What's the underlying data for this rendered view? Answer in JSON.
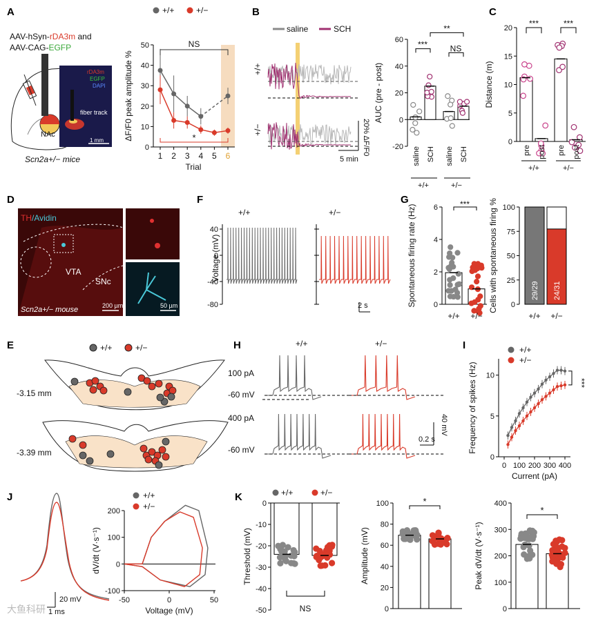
{
  "colors": {
    "wt": "#666666",
    "het": "#d93a2a",
    "saline": "#8a8a8a",
    "sch": "#a03070",
    "trial6": "#f6dcbf"
  },
  "panel_letters": [
    "A",
    "B",
    "C",
    "D",
    "E",
    "F",
    "G",
    "H",
    "I",
    "J",
    "K"
  ],
  "panel_a": {
    "virus_line1_pre": "AAV-hSyn-",
    "virus_line1_colored": "rDA3m",
    "virus_line1_post": " and",
    "virus_line2_pre": "AAV-CAG-",
    "virus_line2_colored": "EGFP",
    "region": "NAc",
    "mice": "Scn2a+/− mice",
    "micro_legend": [
      "rDA3m",
      "EGFP",
      "DAPI"
    ],
    "micro_label": "fiber track",
    "scale": "1 mm"
  },
  "legend": {
    "wt": "+/+",
    "het": "+/−"
  },
  "chart_data": [
    {
      "id": "A",
      "type": "line",
      "title": "",
      "xlabel": "Trial",
      "ylabel": "ΔF/F0 peak amplitude %",
      "x": [
        1,
        2,
        3,
        4,
        5,
        6
      ],
      "ylim": [
        0,
        50
      ],
      "yticks": [
        0,
        10,
        20,
        30,
        40,
        50
      ],
      "series": [
        {
          "name": "+/+",
          "values": [
            37.5,
            26,
            20,
            15,
            null,
            25
          ],
          "err": [
            10.5,
            9,
            5,
            4,
            null,
            4
          ]
        },
        {
          "name": "+/−",
          "values": [
            28,
            13,
            12,
            8.5,
            7,
            8
          ],
          "err": [
            7,
            4,
            3,
            2,
            1.5,
            1.5
          ]
        }
      ],
      "annotations": [
        "NS",
        "*"
      ]
    },
    {
      "id": "B",
      "type": "bar",
      "ylabel": "AUC (pre - post)",
      "categories": [
        "saline +/+",
        "SCH +/+",
        "saline +/−",
        "SCH +/−"
      ],
      "values": [
        2,
        25,
        6,
        10
      ],
      "ylim": [
        -20,
        60
      ],
      "yticks": [
        -20,
        0,
        20,
        40,
        60
      ],
      "annotations": [
        "***",
        "NS",
        "**"
      ]
    },
    {
      "id": "C",
      "type": "bar",
      "ylabel": "Distance (m)",
      "categories": [
        "pre +/+",
        "post +/+",
        "pre +/−",
        "post +/−"
      ],
      "values": [
        11.2,
        0.5,
        14.5,
        0.3
      ],
      "ylim": [
        0,
        20
      ],
      "yticks": [
        0,
        5,
        10,
        15,
        20
      ],
      "annotations": [
        "***",
        "***"
      ]
    },
    {
      "id": "G1",
      "type": "bar",
      "ylabel": "Spontaneous firing rate (Hz)",
      "categories": [
        "+/+",
        "+/−"
      ],
      "values": [
        1.95,
        0.95
      ],
      "ylim": [
        0,
        6
      ],
      "yticks": [
        0,
        2,
        4,
        6
      ],
      "annotations": [
        "***"
      ]
    },
    {
      "id": "G2",
      "type": "bar",
      "ylabel": "Cells with spontaneous firing %",
      "categories": [
        "+/+",
        "+/−"
      ],
      "values": [
        100,
        77.4
      ],
      "ylim": [
        0,
        100
      ],
      "yticks": [
        0,
        25,
        50,
        75,
        100
      ],
      "bar_labels": [
        "29/29",
        "24/31"
      ]
    },
    {
      "id": "I",
      "type": "line",
      "xlabel": "Current (pA)",
      "ylabel": "Frequency of spikes (Hz)",
      "x": [
        25,
        50,
        75,
        100,
        125,
        150,
        175,
        200,
        225,
        250,
        275,
        300,
        325,
        350,
        375,
        400
      ],
      "xticks": [
        0,
        100,
        200,
        300,
        400
      ],
      "ylim": [
        0,
        12
      ],
      "yticks": [
        0,
        5,
        10
      ],
      "series": [
        {
          "name": "+/+",
          "values": [
            2.6,
            3.6,
            4.4,
            5.3,
            6.0,
            6.7,
            7.3,
            7.8,
            8.3,
            8.9,
            9.4,
            9.8,
            10.2,
            10.6,
            10.6,
            10.5
          ]
        },
        {
          "name": "+/−",
          "values": [
            1.5,
            2.4,
            3.2,
            3.8,
            4.4,
            5.0,
            5.5,
            6.0,
            6.5,
            7.0,
            7.4,
            7.8,
            8.2,
            8.6,
            8.7,
            8.8
          ]
        }
      ],
      "annotations": [
        "***"
      ]
    },
    {
      "id": "K1",
      "type": "bar",
      "ylabel": "Threshold (mV)",
      "categories": [
        "+/+",
        "+/−"
      ],
      "values": [
        -24,
        -24.5
      ],
      "ylim": [
        -50,
        0
      ],
      "yticks": [
        -50,
        -40,
        -30,
        -20,
        -10,
        0
      ],
      "annotations": [
        "NS"
      ]
    },
    {
      "id": "K2",
      "type": "bar",
      "ylabel": "Amplitude (mV)",
      "categories": [
        "+/+",
        "+/−"
      ],
      "values": [
        69.5,
        66
      ],
      "ylim": [
        0,
        100
      ],
      "yticks": [
        0,
        20,
        40,
        60,
        80,
        100
      ],
      "annotations": [
        "*"
      ]
    },
    {
      "id": "K3",
      "type": "bar",
      "ylabel": "Peak dV/dt (V·s⁻¹)",
      "categories": [
        "+/+",
        "+/−"
      ],
      "values": [
        243,
        208
      ],
      "ylim": [
        0,
        400
      ],
      "yticks": [
        0,
        100,
        200,
        300,
        400
      ],
      "annotations": [
        "*"
      ]
    },
    {
      "id": "J",
      "type": "line",
      "xlabel": "Voltage (mV)",
      "ylabel": "dV/dt (V·s⁻¹)",
      "xticks": [
        -50,
        0,
        50
      ],
      "ylim": [
        -100,
        200
      ],
      "yticks": [
        -100,
        0,
        100,
        200
      ]
    }
  ],
  "panel_b": {
    "legend_saline": "saline",
    "legend_sch": "SCH",
    "row_wt": "+/+",
    "row_het": "+/−",
    "scale_y": "20% ΔF/F0",
    "scale_x": "5 min",
    "group_labels": [
      "saline",
      "SCH",
      "saline",
      "SCH"
    ],
    "genotypes": [
      "+/+",
      "+/−"
    ]
  },
  "panel_c": {
    "group_labels": [
      "pre",
      "post",
      "pre",
      "post"
    ],
    "genotypes": [
      "+/+",
      "+/−"
    ]
  },
  "panel_d": {
    "stain_th": "TH",
    "stain_avidin": "/Avidin",
    "vta": "VTA",
    "snc": "SNc",
    "mouse": "Scn2a+/− mouse",
    "scale1": "200 µm",
    "scale2": "50 µm"
  },
  "panel_e": {
    "section1": "-3.15 mm",
    "section2": "-3.39 mm"
  },
  "panel_f": {
    "ylabel": "Voltage (mV)",
    "yticks": [
      "40",
      "0",
      "-40",
      "-80"
    ],
    "wt": "+/+",
    "het": "+/−",
    "scale": "2 s"
  },
  "panel_h": {
    "wt": "+/+",
    "het": "+/−",
    "cur1": "100 pA",
    "cur2": "400 pA",
    "v1": "-60 mV",
    "v2": "-60 mV",
    "scale_v": "40 mV",
    "scale_t": "0.2 s"
  },
  "panel_j": {
    "scale_v": "20 mV",
    "scale_t": "1 ms"
  },
  "watermark": "大鱼科研"
}
